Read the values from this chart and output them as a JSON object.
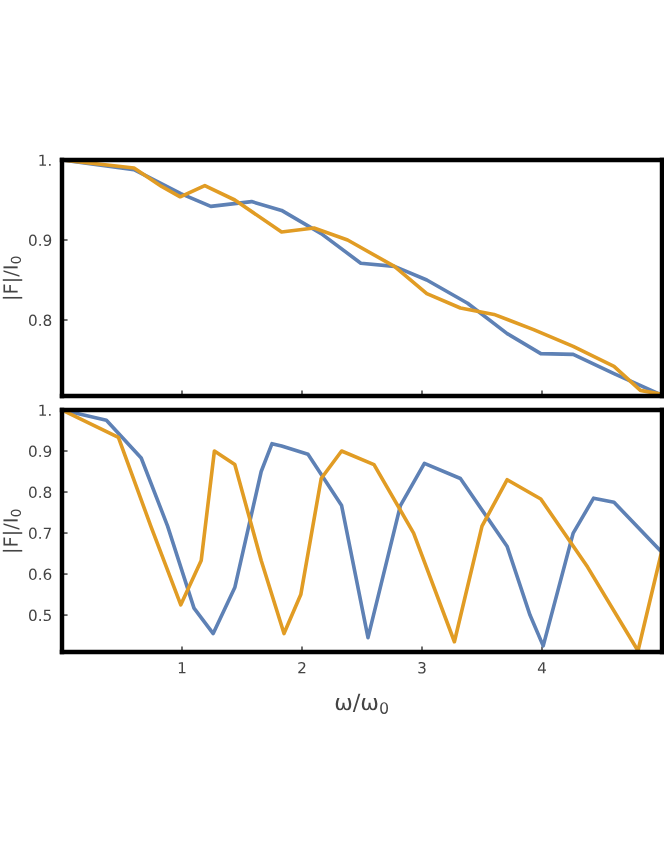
{
  "chart_data": [
    {
      "type": "line",
      "ylabel": "|F|/I$_{0}$",
      "xlim": [
        0,
        5
      ],
      "xticks": [
        1,
        2,
        3,
        4
      ],
      "ylim": [
        0.705,
        1.0
      ],
      "yticks": [
        {
          "value": 1,
          "label": "1."
        },
        0.9,
        0.8
      ],
      "tick_labels": "y",
      "grid": false,
      "legend": false,
      "marker": "none",
      "line_style": "solid",
      "series": [
        {
          "color": "#5e81b5",
          "x": [
            0,
            0.6,
            0.99,
            1.24,
            1.58,
            1.83,
            2.16,
            2.49,
            2.77,
            3.04,
            3.38,
            3.71,
            3.99,
            4.26,
            4.6,
            5.0
          ],
          "values": [
            1.0,
            0.988,
            0.958,
            0.942,
            0.948,
            0.937,
            0.908,
            0.871,
            0.867,
            0.85,
            0.821,
            0.783,
            0.758,
            0.757,
            0.733,
            0.706
          ]
        },
        {
          "color": "#e19c24",
          "x": [
            0,
            0.6,
            0.83,
            0.985,
            1.19,
            1.44,
            1.83,
            2.1,
            2.38,
            2.77,
            3.04,
            3.32,
            3.6,
            3.93,
            4.26,
            4.6,
            4.82,
            5.0
          ],
          "values": [
            1.0,
            0.99,
            0.967,
            0.954,
            0.968,
            0.95,
            0.91,
            0.915,
            0.9,
            0.867,
            0.833,
            0.815,
            0.807,
            0.788,
            0.767,
            0.742,
            0.712,
            0.707
          ]
        }
      ]
    },
    {
      "type": "line",
      "ylabel": "|F|/I$_{0}$",
      "xlabel": "ω/ω$_{0}$",
      "xlim": [
        0,
        5
      ],
      "xticks": [
        1,
        2,
        3,
        4
      ],
      "ylim": [
        0.41,
        1.0
      ],
      "yticks": [
        {
          "value": 1,
          "label": "1."
        },
        0.9,
        0.8,
        0.7,
        0.6,
        0.5
      ],
      "grid": false,
      "legend": false,
      "marker": "none",
      "line_style": "solid",
      "series": [
        {
          "color": "#5e81b5",
          "x": [
            0,
            0.37,
            0.66,
            0.88,
            1.1,
            1.26,
            1.44,
            1.66,
            1.75,
            1.83,
            2.05,
            2.33,
            2.55,
            2.82,
            3.02,
            3.32,
            3.71,
            3.9,
            4.01,
            4.26,
            4.43,
            4.6,
            5.0
          ],
          "values": [
            1.0,
            0.975,
            0.883,
            0.717,
            0.517,
            0.455,
            0.567,
            0.85,
            0.918,
            0.912,
            0.892,
            0.767,
            0.445,
            0.767,
            0.87,
            0.833,
            0.667,
            0.5,
            0.425,
            0.7,
            0.785,
            0.775,
            0.653
          ]
        },
        {
          "color": "#e19c24",
          "x": [
            0,
            0.47,
            0.74,
            0.99,
            1.16,
            1.27,
            1.44,
            1.66,
            1.85,
            1.99,
            2.16,
            2.33,
            2.6,
            2.93,
            3.27,
            3.5,
            3.71,
            3.99,
            4.38,
            4.8,
            5.0
          ],
          "values": [
            1.0,
            0.933,
            0.717,
            0.525,
            0.633,
            0.9,
            0.867,
            0.633,
            0.455,
            0.55,
            0.833,
            0.9,
            0.867,
            0.7,
            0.435,
            0.717,
            0.83,
            0.783,
            0.617,
            0.413,
            0.658
          ]
        }
      ]
    }
  ]
}
